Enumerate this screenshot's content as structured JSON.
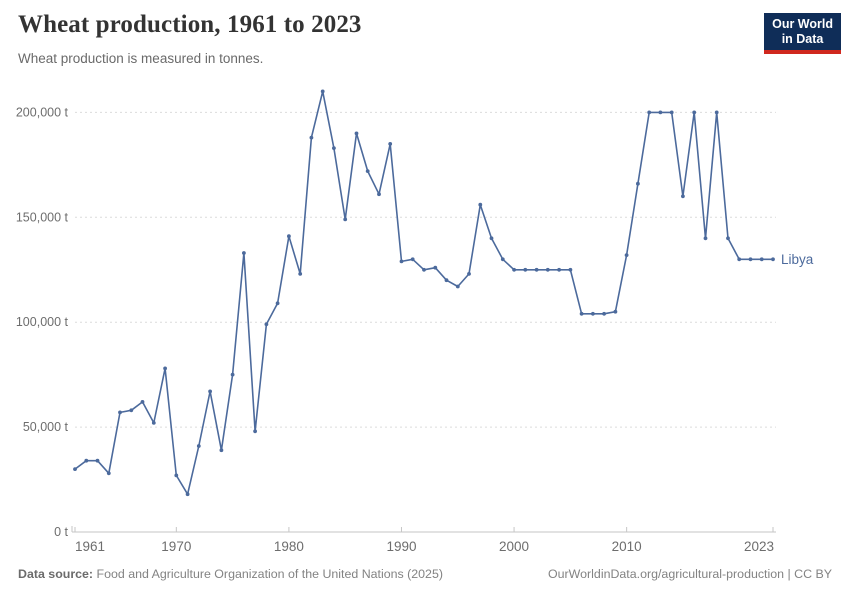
{
  "header": {
    "title": "Wheat production, 1961 to 2023",
    "subtitle": "Wheat production is measured in tonnes.",
    "logo": {
      "line1": "Our World",
      "line2": "in Data"
    }
  },
  "footer": {
    "source_label": "Data source:",
    "source_text": "Food and Agriculture Organization of the United Nations (2025)",
    "credit": "OurWorldinData.org/agricultural-production | CC BY"
  },
  "colors": {
    "series_blue": "#4c6a9c",
    "grid_gray": "#dcdcdc",
    "axis_gray": "#c6c6c6",
    "tick_text_gray": "#6d6d6d",
    "logo_navy": "#0f2d58",
    "logo_red": "#d0281e"
  },
  "chart_data": {
    "type": "line",
    "title": "Wheat production, 1961 to 2023",
    "subtitle": "Wheat production is measured in tonnes.",
    "xlabel": "",
    "ylabel": "",
    "unit": "t",
    "grid": "horizontal-dashed",
    "legend": "label-at-line-end",
    "xlim": [
      1961,
      2023
    ],
    "ylim": [
      0,
      210000
    ],
    "x_ticks": [
      1961,
      1970,
      1980,
      1990,
      2000,
      2010,
      2023
    ],
    "y_ticks": [
      {
        "v": 0,
        "label": "0 t"
      },
      {
        "v": 50000,
        "label": "50,000 t"
      },
      {
        "v": 100000,
        "label": "100,000 t"
      },
      {
        "v": 150000,
        "label": "150,000 t"
      },
      {
        "v": 200000,
        "label": "200,000 t"
      }
    ],
    "x": [
      1961,
      1962,
      1963,
      1964,
      1965,
      1966,
      1967,
      1968,
      1969,
      1970,
      1971,
      1972,
      1973,
      1974,
      1975,
      1976,
      1977,
      1978,
      1979,
      1980,
      1981,
      1982,
      1983,
      1984,
      1985,
      1986,
      1987,
      1988,
      1989,
      1990,
      1991,
      1992,
      1993,
      1994,
      1995,
      1996,
      1997,
      1998,
      1999,
      2000,
      2001,
      2002,
      2003,
      2004,
      2005,
      2006,
      2007,
      2008,
      2009,
      2010,
      2011,
      2012,
      2013,
      2014,
      2015,
      2016,
      2017,
      2018,
      2019,
      2020,
      2021,
      2022,
      2023
    ],
    "series": [
      {
        "name": "Libya",
        "color": "#4c6a9c",
        "values": [
          30000,
          34000,
          34000,
          28000,
          57000,
          58000,
          62000,
          52000,
          78000,
          27000,
          18000,
          41000,
          67000,
          39000,
          75000,
          133000,
          48000,
          99000,
          109000,
          141000,
          123000,
          188000,
          210000,
          183000,
          149000,
          190000,
          172000,
          161000,
          185000,
          129000,
          130000,
          125000,
          126000,
          120000,
          117000,
          123000,
          156000,
          140000,
          130000,
          125000,
          125000,
          125000,
          125000,
          125000,
          125000,
          104000,
          104000,
          104000,
          105000,
          132000,
          166000,
          200000,
          200000,
          200000,
          160000,
          200000,
          140000,
          200000,
          140000,
          130000,
          130000,
          130000,
          130000
        ]
      }
    ]
  }
}
